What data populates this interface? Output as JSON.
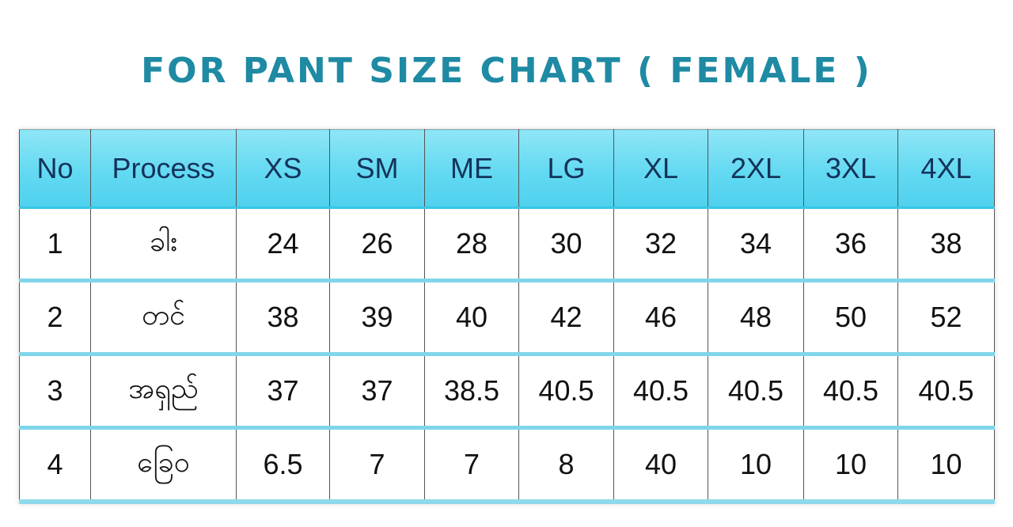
{
  "title": "FOR PANT SIZE CHART ( FEMALE )",
  "table": {
    "headers": [
      "No",
      "Process",
      "XS",
      "SM",
      "ME",
      "LG",
      "XL",
      "2XL",
      "3XL",
      "4XL"
    ],
    "rows": [
      [
        "1",
        "ခါး",
        "24",
        "26",
        "28",
        "30",
        "32",
        "34",
        "36",
        "38"
      ],
      [
        "2",
        "တင်",
        "38",
        "39",
        "40",
        "42",
        "46",
        "48",
        "50",
        "52"
      ],
      [
        "3",
        "အရှည်",
        "37",
        "37",
        "38.5",
        "40.5",
        "40.5",
        "40.5",
        "40.5",
        "40.5"
      ],
      [
        "4",
        "ခြေဝ",
        "6.5",
        "7",
        "7",
        "8",
        "40",
        "10",
        "10",
        "10"
      ]
    ]
  },
  "colors": {
    "title": "#1f8aa3",
    "header_bg": "#63d9f2",
    "header_text": "#13335a",
    "row_separator": "#7fd6ea"
  }
}
